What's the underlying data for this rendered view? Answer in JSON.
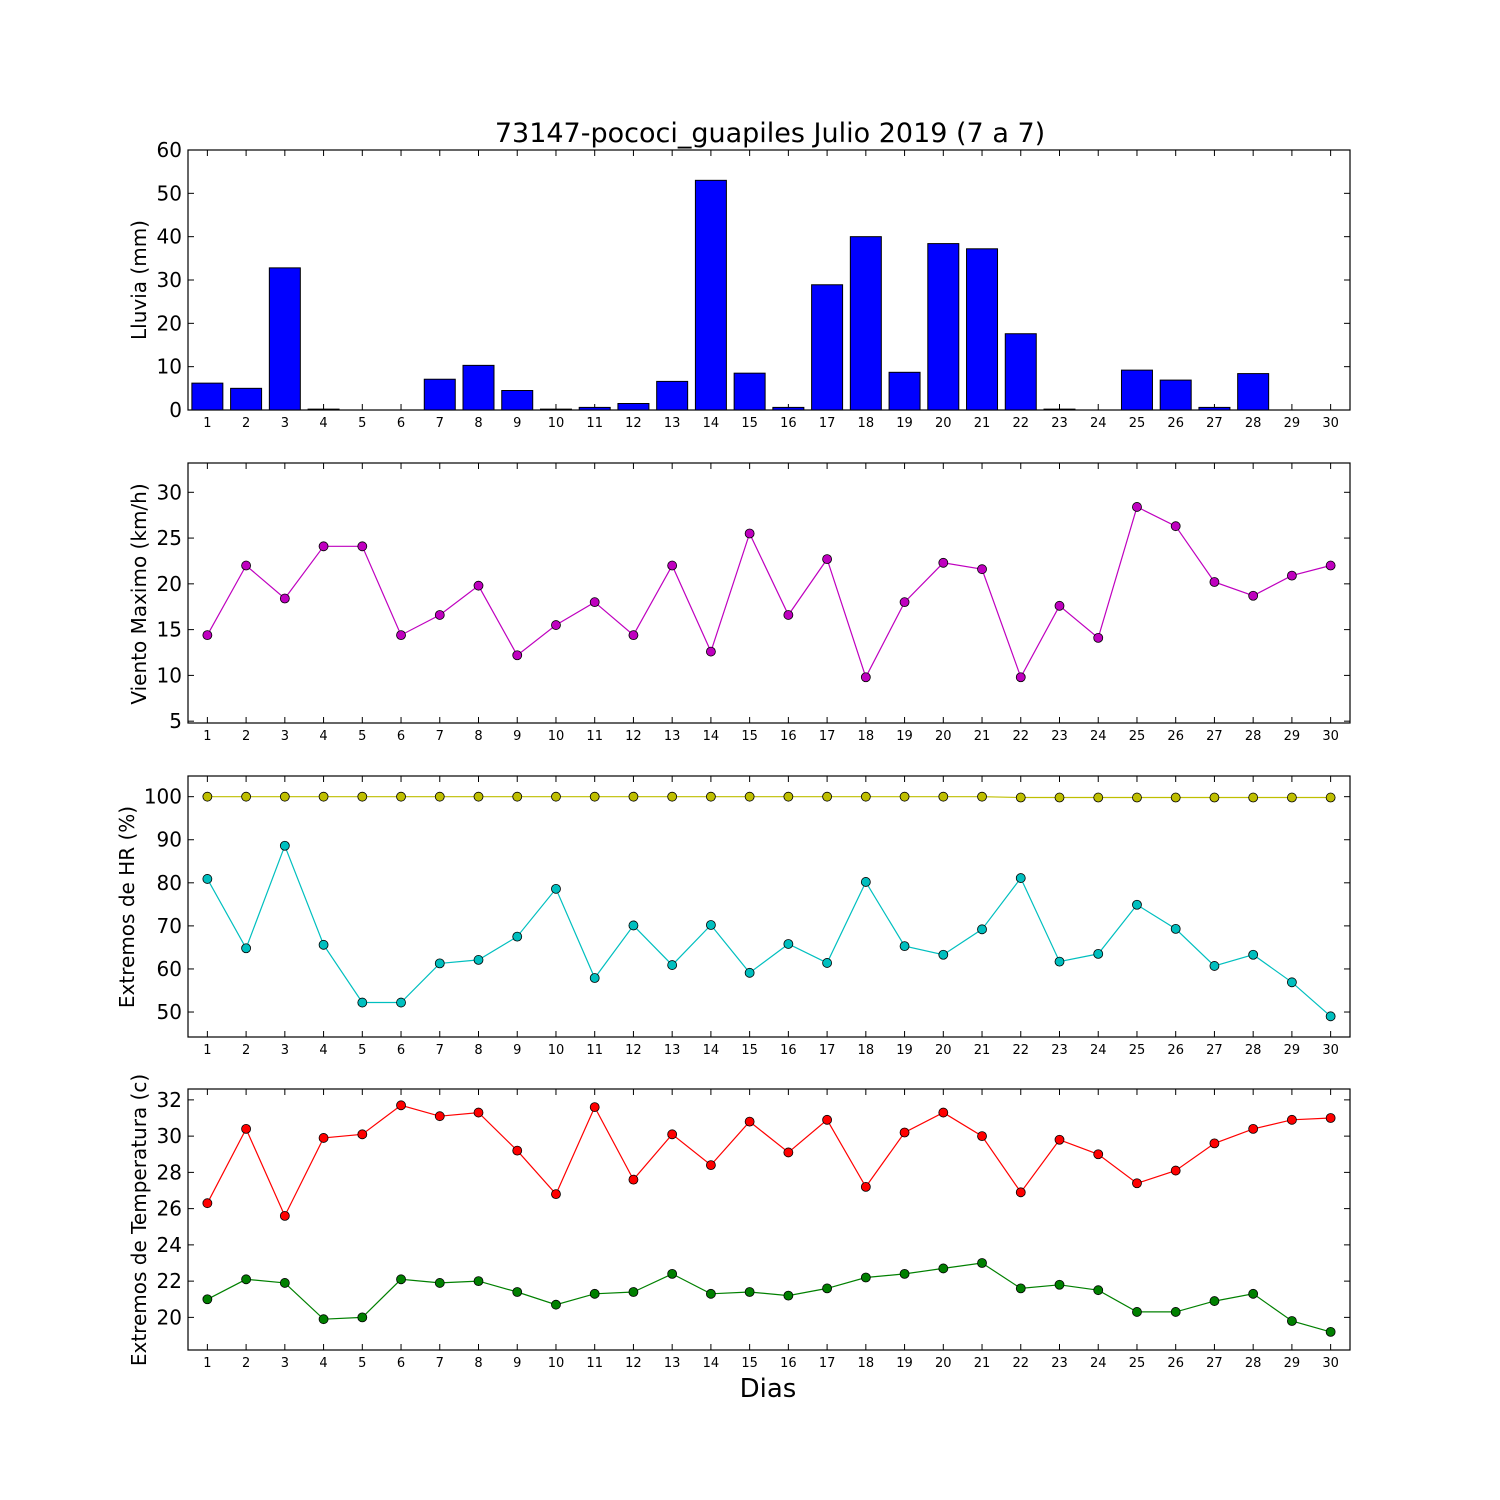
{
  "chart_data": [
    {
      "type": "bar",
      "title": "73147-pococi_guapiles Julio 2019  (7 a 7)",
      "ylabel": "Lluvia (mm)",
      "xlabel": "",
      "categories": [
        "1",
        "2",
        "3",
        "4",
        "5",
        "6",
        "7",
        "8",
        "9",
        "10",
        "11",
        "12",
        "13",
        "14",
        "15",
        "16",
        "17",
        "18",
        "19",
        "20",
        "21",
        "22",
        "23",
        "24",
        "25",
        "26",
        "27",
        "28",
        "29",
        "30"
      ],
      "series": [
        {
          "color": "#0000ff",
          "values": [
            6.2,
            5.0,
            32.8,
            0.2,
            0,
            0,
            7.1,
            10.3,
            4.5,
            0.2,
            0.6,
            1.5,
            6.6,
            53.0,
            8.5,
            0.6,
            28.9,
            40.0,
            8.7,
            38.4,
            37.2,
            17.6,
            0.2,
            0,
            9.2,
            6.9,
            0.6,
            8.4,
            0,
            0
          ]
        }
      ],
      "ylim": [
        0,
        60
      ],
      "yticks": [
        0,
        10,
        20,
        30,
        40,
        50,
        60
      ],
      "grid": false
    },
    {
      "type": "line",
      "ylabel": "Viento Maximo (km/h)",
      "xlabel": "",
      "categories": [
        "1",
        "2",
        "3",
        "4",
        "5",
        "6",
        "7",
        "8",
        "9",
        "10",
        "11",
        "12",
        "13",
        "14",
        "15",
        "16",
        "17",
        "18",
        "19",
        "20",
        "21",
        "22",
        "23",
        "24",
        "25",
        "26",
        "27",
        "28",
        "29",
        "30"
      ],
      "series": [
        {
          "color": "#bf00bf",
          "values": [
            14.4,
            22.0,
            18.4,
            24.1,
            24.1,
            14.4,
            16.6,
            19.8,
            12.2,
            15.5,
            18.0,
            14.4,
            22.0,
            12.6,
            25.5,
            16.6,
            22.7,
            9.8,
            18.0,
            22.3,
            21.6,
            9.8,
            17.6,
            14.1,
            28.4,
            26.3,
            20.2,
            18.7,
            20.9,
            22.0
          ]
        }
      ],
      "ylim": [
        4.8,
        33.2
      ],
      "yticks": [
        5,
        10,
        15,
        20,
        25,
        30
      ],
      "grid": false
    },
    {
      "type": "line",
      "ylabel": "Extremos de HR (%)",
      "xlabel": "",
      "categories": [
        "1",
        "2",
        "3",
        "4",
        "5",
        "6",
        "7",
        "8",
        "9",
        "10",
        "11",
        "12",
        "13",
        "14",
        "15",
        "16",
        "17",
        "18",
        "19",
        "20",
        "21",
        "22",
        "23",
        "24",
        "25",
        "26",
        "27",
        "28",
        "29",
        "30"
      ],
      "series": [
        {
          "color": "#bfbf00",
          "values": [
            100,
            100,
            100,
            100,
            100,
            100,
            100,
            100,
            100,
            100,
            100,
            100,
            100,
            100,
            100,
            100,
            100,
            100,
            100,
            100,
            100,
            99.8,
            99.8,
            99.8,
            99.8,
            99.8,
            99.8,
            99.8,
            99.8,
            99.8
          ]
        },
        {
          "color": "#00bfbf",
          "values": [
            80.9,
            64.8,
            88.6,
            65.6,
            52.2,
            52.2,
            61.3,
            62.1,
            67.5,
            78.6,
            57.9,
            70.1,
            60.9,
            70.2,
            59.1,
            65.8,
            61.4,
            80.2,
            65.3,
            63.3,
            69.2,
            81.1,
            61.7,
            63.5,
            74.9,
            69.3,
            60.7,
            63.3,
            56.9,
            49.0
          ]
        }
      ],
      "ylim": [
        44.2,
        104.8
      ],
      "yticks": [
        50,
        60,
        70,
        80,
        90,
        100
      ],
      "grid": false
    },
    {
      "type": "line",
      "ylabel": "Extremos de Temperatura (c)",
      "xlabel": "Dias",
      "categories": [
        "1",
        "2",
        "3",
        "4",
        "5",
        "6",
        "7",
        "8",
        "9",
        "10",
        "11",
        "12",
        "13",
        "14",
        "15",
        "16",
        "17",
        "18",
        "19",
        "20",
        "21",
        "22",
        "23",
        "24",
        "25",
        "26",
        "27",
        "28",
        "29",
        "30"
      ],
      "series": [
        {
          "color": "#ff0000",
          "values": [
            26.3,
            30.4,
            25.6,
            29.9,
            30.1,
            31.7,
            31.1,
            31.3,
            29.2,
            26.8,
            31.6,
            27.6,
            30.1,
            28.4,
            30.8,
            29.1,
            30.9,
            27.2,
            30.2,
            31.3,
            30.0,
            26.9,
            29.8,
            29.0,
            27.4,
            28.1,
            29.6,
            30.4,
            30.9,
            31.0
          ]
        },
        {
          "color": "#008000",
          "values": [
            21.0,
            22.1,
            21.9,
            19.9,
            20.0,
            22.1,
            21.9,
            22.0,
            21.4,
            20.7,
            21.3,
            21.4,
            22.4,
            21.3,
            21.4,
            21.2,
            21.6,
            22.2,
            22.4,
            22.7,
            23.0,
            21.6,
            21.8,
            21.5,
            20.3,
            20.3,
            20.9,
            21.3,
            19.8,
            19.2
          ]
        }
      ],
      "ylim": [
        18.2,
        32.6
      ],
      "yticks": [
        20,
        22,
        24,
        26,
        28,
        30,
        32
      ],
      "grid": false
    }
  ]
}
